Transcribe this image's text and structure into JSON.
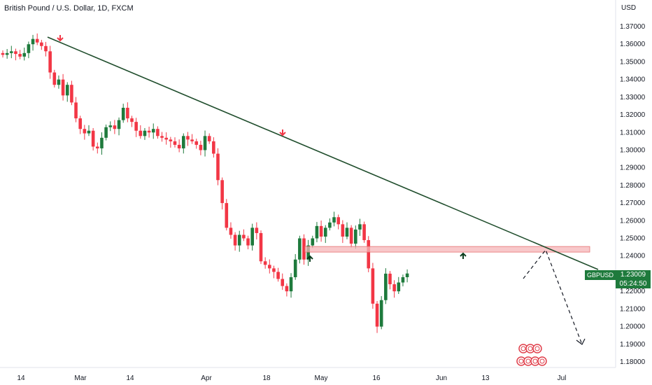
{
  "header": {
    "title": "British Pound / U.S. Dollar, 1D, FXCM"
  },
  "axis": {
    "unit": "USD"
  },
  "price_tag": {
    "symbol": "GBPUSD",
    "price": "1.23009",
    "countdown": "05:24:50"
  },
  "colors": {
    "up": "#1e7a3c",
    "down": "#f23645",
    "trend": "#1f4d2c",
    "zone": "#f5b5b8"
  },
  "chart_data": {
    "type": "candlestick",
    "title": "British Pound / U.S. Dollar, 1D, FXCM",
    "y_ticks": [
      "1.37000",
      "1.36000",
      "1.35000",
      "1.34000",
      "1.33000",
      "1.32000",
      "1.31000",
      "1.30000",
      "1.29000",
      "1.28000",
      "1.27000",
      "1.26000",
      "1.25000",
      "1.24000",
      "1.23000",
      "1.22000",
      "1.21000",
      "1.20000",
      "1.19000",
      "1.18000"
    ],
    "x_ticks": [
      "14",
      "Mar",
      "14",
      "Apr",
      "18",
      "May",
      "16",
      "Jun",
      "13",
      "Jul"
    ],
    "ylim": [
      1.176,
      1.378
    ],
    "closes": [
      1.354,
      1.355,
      1.356,
      1.3545,
      1.353,
      1.355,
      1.36,
      1.363,
      1.361,
      1.359,
      1.356,
      1.344,
      1.337,
      1.34,
      1.331,
      1.337,
      1.327,
      1.318,
      1.312,
      1.3095,
      1.311,
      1.302,
      1.301,
      1.307,
      1.313,
      1.314,
      1.312,
      1.317,
      1.324,
      1.318,
      1.316,
      1.311,
      1.308,
      1.311,
      1.31,
      1.312,
      1.308,
      1.307,
      1.306,
      1.305,
      1.303,
      1.301,
      1.308,
      1.306,
      1.305,
      1.303,
      1.3,
      1.308,
      1.305,
      1.298,
      1.283,
      1.27,
      1.256,
      1.252,
      1.246,
      1.252,
      1.25,
      1.246,
      1.256,
      1.253,
      1.237,
      1.235,
      1.233,
      1.231,
      1.227,
      1.223,
      1.22,
      1.228,
      1.238,
      1.25,
      1.238,
      1.246,
      1.25,
      1.257,
      1.251,
      1.256,
      1.259,
      1.262,
      1.258,
      1.251,
      1.256,
      1.247,
      1.255,
      1.258,
      1.249,
      1.233,
      1.213,
      1.2,
      1.215,
      1.23,
      1.224,
      1.22,
      1.225,
      1.228,
      1.2301
    ],
    "trendline": {
      "from": {
        "bar": 11,
        "price": 1.3645
      },
      "to": {
        "bar": 140,
        "price": 1.233
      }
    },
    "zone": {
      "from_price": 1.2435,
      "to_price": 1.245
    },
    "projection": [
      1.23,
      1.245,
      1.192
    ],
    "markers": [
      {
        "type": "down-arrow",
        "bar": 13
      },
      {
        "type": "down-arrow",
        "bar": 61
      },
      {
        "type": "up-arrow",
        "bar": 67
      },
      {
        "type": "up-arrow",
        "bar": 104
      }
    ]
  }
}
